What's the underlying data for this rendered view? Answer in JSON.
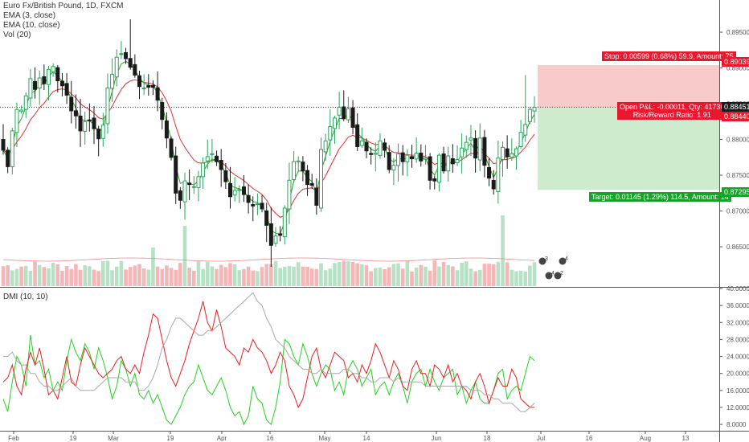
{
  "legend": {
    "symbol_line": "Euro Fx/British Pound, 1D, FXCM",
    "ema3": "EMA (3, close)",
    "ema10": "EMA (10, close)",
    "vol": "Vol (20)",
    "dmi": "DMI (10, 10)"
  },
  "position": {
    "stop_label": "Stop: 0.00599 (0.68%) 59.9, Amount: 75",
    "stop_price": "0.89039",
    "open_pl_label": "Open P&L: -0.00011, Qty: 41736",
    "rr_label": "Risk/Reward Ratio: 1.91",
    "last_price": "0.88451",
    "entry_price": "0.88440",
    "target_label": "Target: 0.01145 (1.29%) 114.5, Amount: 14",
    "target_price": "0.87295",
    "stop_value": 0.89039,
    "entry_value": 0.8844,
    "target_value": 0.87295,
    "last_value": 0.88451
  },
  "colors": {
    "up": "#26a65b",
    "down": "#1a1a1a",
    "ema3": "#1aa31a",
    "ema10": "#e03030",
    "vol_up": "#b7e1c5",
    "vol_down": "#f4b6b6",
    "di_plus": "#22d222",
    "di_minus": "#e62020",
    "adx": "#a8a8a8",
    "stop_zone": "#f9caca",
    "target_zone": "#cdeccd",
    "stop_tag": "#e8182e",
    "target_tag": "#17a32a",
    "price_tag": "#1c1c1c"
  },
  "event_icons": [
    "3",
    "4",
    "4",
    "2"
  ],
  "chart_data": [
    {
      "type": "candlestick",
      "title": "Euro Fx/British Pound, 1D, FXCM",
      "ylim": [
        0.8595,
        0.8995
      ],
      "y_ticks": [
        "0.86500",
        "0.87000",
        "0.87500",
        "0.88000",
        "0.88500",
        "0.89000",
        "0.89500"
      ],
      "x_ticks": [
        "Feb",
        "19",
        "Mar",
        "19",
        "Apr",
        "16",
        "May",
        "14",
        "Jun",
        "18",
        "Jul",
        "16",
        "Aug",
        "13"
      ],
      "grid": false,
      "close": [
        0.8785,
        0.8762,
        0.8812,
        0.8842,
        0.8841,
        0.8861,
        0.8885,
        0.887,
        0.8886,
        0.8878,
        0.8898,
        0.8902,
        0.8882,
        0.8875,
        0.8862,
        0.884,
        0.8833,
        0.8812,
        0.8825,
        0.8826,
        0.8815,
        0.8801,
        0.882,
        0.8872,
        0.8891,
        0.8915,
        0.892,
        0.8913,
        0.8901,
        0.889,
        0.8874,
        0.8872,
        0.8873,
        0.8873,
        0.8855,
        0.8828,
        0.8802,
        0.8775,
        0.8725,
        0.8715,
        0.8742,
        0.8737,
        0.8734,
        0.8748,
        0.8767,
        0.8776,
        0.878,
        0.8769,
        0.8758,
        0.8741,
        0.872,
        0.8729,
        0.873,
        0.8723,
        0.8712,
        0.8707,
        0.871,
        0.8703,
        0.868,
        0.8652,
        0.8665,
        0.8666,
        0.8704,
        0.8743,
        0.8769,
        0.877,
        0.8756,
        0.8737,
        0.8736,
        0.8708,
        0.8786,
        0.8798,
        0.8818,
        0.883,
        0.8845,
        0.8829,
        0.8843,
        0.8817,
        0.879,
        0.8798,
        0.8784,
        0.8779,
        0.8781,
        0.8798,
        0.8785,
        0.8758,
        0.8764,
        0.878,
        0.8769,
        0.8778,
        0.8773,
        0.8781,
        0.877,
        0.8774,
        0.8743,
        0.8742,
        0.8778,
        0.8756,
        0.8777,
        0.8766,
        0.8772,
        0.8788,
        0.8796,
        0.8802,
        0.8774,
        0.8802,
        0.8764,
        0.8746,
        0.8731,
        0.8774,
        0.8789,
        0.8776,
        0.878,
        0.8787,
        0.881,
        0.8821,
        0.8842,
        0.8845
      ],
      "ema3_color_key": "ema3",
      "ema10_color_key": "ema10"
    },
    {
      "type": "line",
      "title": "DMI (10, 10)",
      "ylim": [
        6.5,
        40
      ],
      "y_ticks": [
        "8.0000",
        "12.0000",
        "16.0000",
        "20.0000",
        "24.0000",
        "28.0000",
        "32.0000",
        "36.0000",
        "40.0000"
      ],
      "series": [
        {
          "color_key": "di_plus",
          "values": [
            14,
            11,
            18,
            24,
            22,
            17,
            29,
            22,
            23,
            19,
            21,
            16,
            18,
            16,
            23,
            28,
            25,
            23,
            27,
            25,
            21,
            26,
            23,
            19,
            14,
            17,
            23,
            21,
            17,
            20,
            15,
            14,
            16,
            13,
            15,
            12,
            9,
            8,
            10,
            12,
            15,
            17,
            18,
            22,
            19,
            16,
            15,
            17,
            19,
            16,
            12,
            10,
            11,
            8,
            10,
            17,
            14,
            13,
            9,
            8,
            12,
            18,
            28,
            27,
            24,
            22,
            27,
            24,
            20,
            17,
            20,
            22,
            21,
            16,
            18,
            15,
            21,
            23,
            21,
            17,
            19,
            21,
            15,
            17,
            18,
            15,
            18,
            20,
            17,
            13,
            18,
            20,
            21,
            17,
            21,
            18,
            16,
            19,
            20,
            21,
            15,
            17,
            13,
            16,
            18,
            14,
            13,
            13,
            16,
            20,
            21,
            14,
            16,
            17,
            16,
            20,
            24,
            23
          ]
        },
        {
          "color_key": "di_minus",
          "values": [
            18,
            19,
            22,
            17,
            15,
            21,
            25,
            22,
            26,
            21,
            15,
            16,
            14,
            19,
            24,
            18,
            17,
            22,
            26,
            24,
            22,
            20,
            19,
            20,
            21,
            23,
            24,
            21,
            20,
            22,
            20,
            25,
            29,
            34,
            33,
            28,
            23,
            19,
            17,
            20,
            23,
            27,
            30,
            33,
            37,
            32,
            30,
            35,
            31,
            26,
            25,
            24,
            22,
            26,
            25,
            28,
            26,
            25,
            23,
            20,
            22,
            25,
            23,
            17,
            15,
            12,
            14,
            19,
            24,
            26,
            21,
            19,
            22,
            25,
            24,
            23,
            19,
            20,
            18,
            22,
            20,
            23,
            27,
            25,
            22,
            19,
            23,
            21,
            17,
            16,
            21,
            23,
            20,
            20,
            17,
            22,
            21,
            19,
            22,
            18,
            20,
            17,
            16,
            14,
            18,
            20,
            17,
            13,
            16,
            19,
            17,
            17,
            21,
            19,
            14,
            13,
            12,
            12
          ]
        },
        {
          "color_key": "adx",
          "values": [
            24,
            24,
            25,
            23,
            22,
            22,
            20,
            20,
            18,
            17,
            17,
            16,
            16,
            17,
            18,
            19,
            17,
            16,
            16,
            16,
            16,
            17,
            18,
            19,
            19,
            19,
            19,
            18,
            18,
            18,
            16,
            16,
            17,
            19,
            22,
            26,
            28,
            31,
            33,
            33,
            32,
            31,
            30,
            29,
            29,
            30,
            30,
            31,
            32,
            33,
            34,
            35,
            36,
            37,
            38,
            39,
            37,
            36,
            33,
            31,
            28,
            27,
            26,
            24,
            23,
            22,
            21,
            21,
            20,
            20,
            21,
            20,
            20,
            20,
            20,
            21,
            21,
            20,
            20,
            19,
            19,
            18,
            18,
            19,
            19,
            19,
            18,
            19,
            18,
            18,
            18,
            18,
            18,
            17,
            17,
            17,
            17,
            17,
            17,
            17,
            17,
            17,
            17,
            16,
            16,
            16,
            15,
            15,
            14,
            14,
            13,
            13,
            13,
            12,
            11,
            11,
            12,
            13
          ]
        }
      ]
    }
  ]
}
